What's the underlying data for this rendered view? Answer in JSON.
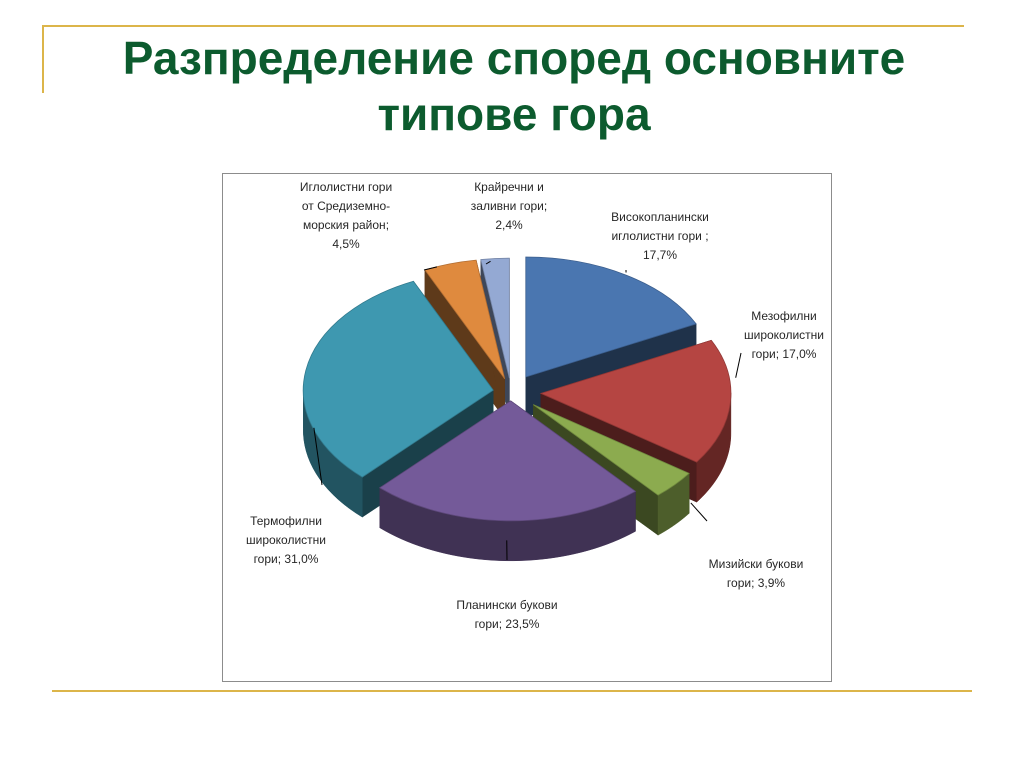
{
  "slide": {
    "title_line1": "Разпределение според основните",
    "title_line2": "типове гора"
  },
  "chart_data": {
    "type": "pie",
    "style": "3d-exploded",
    "slices": [
      {
        "label_lines": [
          "Високопланински",
          "иглолистни гори ;",
          "17,7%"
        ],
        "value": 17.7,
        "color": "#4a76b0"
      },
      {
        "label_lines": [
          "Мезофилни",
          "широколистни",
          "гори; 17,0%"
        ],
        "value": 17.0,
        "color": "#b54542"
      },
      {
        "label_lines": [
          "Мизийски букови",
          "гори; 3,9%"
        ],
        "value": 3.9,
        "color": "#8cab4f"
      },
      {
        "label_lines": [
          "Планински букови",
          "гори; 23,5%"
        ],
        "value": 23.5,
        "color": "#745a99"
      },
      {
        "label_lines": [
          "Термофилни",
          "широколистни",
          "гори; 31,0%"
        ],
        "value": 31.0,
        "color": "#3e98b0"
      },
      {
        "label_lines": [
          "Иглолистни гори",
          "от Средиземно-",
          "морския район;",
          "4,5%"
        ],
        "value": 4.5,
        "color": "#df8a3e"
      },
      {
        "label_lines": [
          "Крайречни и",
          "заливни гори;",
          "2,4%"
        ],
        "value": 2.4,
        "color": "#94a9d3"
      }
    ],
    "legend": "none"
  }
}
